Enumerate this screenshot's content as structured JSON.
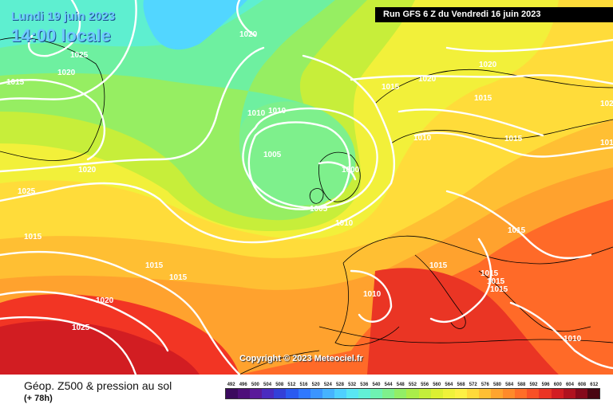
{
  "header": {
    "date": "Lundi 19 juin 2023",
    "local_time": "14:00 locale",
    "run_info": "Run GFS 6 Z du Vendredi 16 juin 2023"
  },
  "copyright": "Copyright © 2023 Meteociel.fr",
  "legend": {
    "title": "Géop. Z500 & pression au sol",
    "forecast": "(+ 78h)",
    "scale_values": [
      "492",
      "496",
      "500",
      "504",
      "508",
      "512",
      "516",
      "520",
      "524",
      "528",
      "532",
      "536",
      "540",
      "544",
      "548",
      "552",
      "556",
      "560",
      "564",
      "568",
      "572",
      "576",
      "580",
      "584",
      "588",
      "592",
      "596",
      "600",
      "604",
      "608",
      "612"
    ],
    "scale_colors": [
      "#3b0a5e",
      "#4e0f7a",
      "#5a1a9a",
      "#4a2bc0",
      "#3340d8",
      "#2a5af0",
      "#2f78ff",
      "#3b95ff",
      "#46b3ff",
      "#4fd0ff",
      "#59e6f3",
      "#62f0d6",
      "#6ef2b2",
      "#7ef08c",
      "#92ee66",
      "#aaed4a",
      "#c4ee3a",
      "#dcf033",
      "#eff23a",
      "#fdf044",
      "#ffd93a",
      "#ffbf33",
      "#ffa42e",
      "#ff8a2a",
      "#ff6e28",
      "#f85026",
      "#ea3524",
      "#d21d22",
      "#b0121f",
      "#85091b",
      "#4a0612"
    ]
  },
  "isobar_labels": [
    {
      "text": "1020"
    },
    {
      "text": "1025"
    },
    {
      "text": "1020"
    },
    {
      "text": "1015"
    },
    {
      "text": "1020"
    },
    {
      "text": "1015"
    },
    {
      "text": "1020"
    },
    {
      "text": "1015"
    },
    {
      "text": "102"
    },
    {
      "text": "1010"
    },
    {
      "text": "1010"
    },
    {
      "text": "1015"
    },
    {
      "text": "101"
    },
    {
      "text": "1005"
    },
    {
      "text": "1000"
    },
    {
      "text": "1020"
    },
    {
      "text": "1025"
    },
    {
      "text": "1015"
    },
    {
      "text": "1005"
    },
    {
      "text": "1010"
    },
    {
      "text": "1010"
    },
    {
      "text": "1015"
    },
    {
      "text": "1015"
    },
    {
      "text": "1015"
    },
    {
      "text": "1015"
    },
    {
      "text": "1015"
    },
    {
      "text": "1015"
    },
    {
      "text": "1015"
    },
    {
      "text": "1020"
    },
    {
      "text": "1010"
    },
    {
      "text": "1025"
    },
    {
      "text": "1010"
    }
  ]
}
